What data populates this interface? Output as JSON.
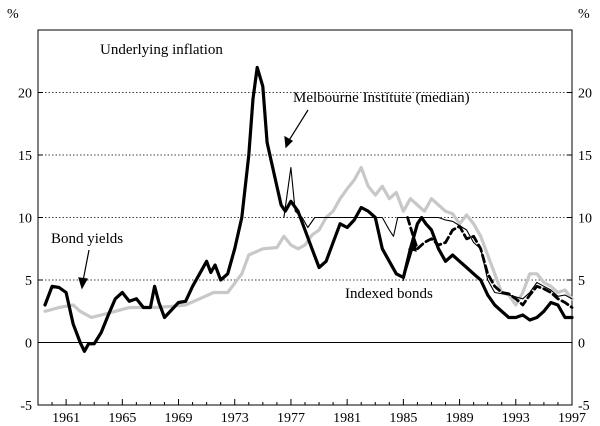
{
  "chart_data": {
    "type": "line",
    "y_unit_left": "%",
    "y_unit_right": "%",
    "ylim": [
      -5,
      25
    ],
    "y_ticks": [
      -5,
      0,
      5,
      10,
      15,
      20
    ],
    "xlim": [
      1959,
      1997
    ],
    "x_ticks": [
      1961,
      1965,
      1969,
      1973,
      1977,
      1981,
      1985,
      1989,
      1993,
      1997
    ],
    "gridlines_y": [
      5,
      10,
      15,
      20
    ],
    "zero_line": true,
    "series": [
      {
        "name": "Underlying inflation",
        "color": "#000000",
        "style": "thick",
        "points": [
          [
            1959.5,
            3.0
          ],
          [
            1960.0,
            4.5
          ],
          [
            1960.5,
            4.4
          ],
          [
            1961.0,
            4.0
          ],
          [
            1961.5,
            1.5
          ],
          [
            1962.0,
            0.0
          ],
          [
            1962.3,
            -0.7
          ],
          [
            1962.6,
            -0.1
          ],
          [
            1963.0,
            -0.1
          ],
          [
            1963.5,
            0.8
          ],
          [
            1964.0,
            2.2
          ],
          [
            1964.5,
            3.5
          ],
          [
            1965.0,
            4.0
          ],
          [
            1965.5,
            3.3
          ],
          [
            1966.0,
            3.5
          ],
          [
            1966.5,
            2.8
          ],
          [
            1967.0,
            2.8
          ],
          [
            1967.3,
            4.5
          ],
          [
            1967.6,
            3.2
          ],
          [
            1968.0,
            2.0
          ],
          [
            1968.5,
            2.6
          ],
          [
            1969.0,
            3.2
          ],
          [
            1969.5,
            3.3
          ],
          [
            1970.0,
            4.5
          ],
          [
            1970.5,
            5.5
          ],
          [
            1971.0,
            6.5
          ],
          [
            1971.3,
            5.6
          ],
          [
            1971.6,
            6.2
          ],
          [
            1972.0,
            5.0
          ],
          [
            1972.5,
            5.5
          ],
          [
            1973.0,
            7.5
          ],
          [
            1973.5,
            10.0
          ],
          [
            1974.0,
            15.0
          ],
          [
            1974.3,
            19.5
          ],
          [
            1974.6,
            22.0
          ],
          [
            1975.0,
            20.5
          ],
          [
            1975.3,
            16.0
          ],
          [
            1975.6,
            14.5
          ],
          [
            1976.0,
            12.5
          ],
          [
            1976.3,
            11.0
          ],
          [
            1976.6,
            10.5
          ],
          [
            1977.0,
            11.3
          ],
          [
            1977.5,
            10.5
          ],
          [
            1978.0,
            9.0
          ],
          [
            1978.5,
            7.5
          ],
          [
            1979.0,
            6.0
          ],
          [
            1979.5,
            6.5
          ],
          [
            1980.0,
            8.0
          ],
          [
            1980.5,
            9.5
          ],
          [
            1981.0,
            9.2
          ],
          [
            1981.5,
            9.8
          ],
          [
            1982.0,
            10.8
          ],
          [
            1982.5,
            10.5
          ],
          [
            1983.0,
            10.0
          ],
          [
            1983.5,
            7.5
          ],
          [
            1984.0,
            6.5
          ],
          [
            1984.5,
            5.5
          ],
          [
            1985.0,
            5.2
          ],
          [
            1985.5,
            7.5
          ],
          [
            1986.0,
            9.5
          ],
          [
            1986.3,
            10.0
          ],
          [
            1986.6,
            9.5
          ],
          [
            1987.0,
            9.0
          ],
          [
            1987.5,
            7.5
          ],
          [
            1988.0,
            6.5
          ],
          [
            1988.5,
            7.0
          ],
          [
            1989.0,
            6.5
          ],
          [
            1989.5,
            6.0
          ],
          [
            1990.0,
            5.5
          ],
          [
            1990.5,
            5.0
          ],
          [
            1991.0,
            3.8
          ],
          [
            1991.5,
            3.0
          ],
          [
            1992.0,
            2.5
          ],
          [
            1992.5,
            2.0
          ],
          [
            1993.0,
            2.0
          ],
          [
            1993.5,
            2.2
          ],
          [
            1994.0,
            1.8
          ],
          [
            1994.5,
            2.0
          ],
          [
            1995.0,
            2.5
          ],
          [
            1995.5,
            3.2
          ],
          [
            1996.0,
            3.0
          ],
          [
            1996.5,
            2.0
          ],
          [
            1997.0,
            2.0
          ]
        ]
      },
      {
        "name": "Bond yields",
        "color": "#c8c8c8",
        "style": "thick",
        "points": [
          [
            1959.5,
            2.5
          ],
          [
            1960.5,
            2.8
          ],
          [
            1961.5,
            3.0
          ],
          [
            1962.0,
            2.5
          ],
          [
            1962.8,
            2.0
          ],
          [
            1963.5,
            2.2
          ],
          [
            1964.5,
            2.5
          ],
          [
            1965.5,
            2.8
          ],
          [
            1966.5,
            2.8
          ],
          [
            1967.5,
            2.8
          ],
          [
            1968.5,
            2.9
          ],
          [
            1969.5,
            3.0
          ],
          [
            1970.5,
            3.5
          ],
          [
            1971.5,
            4.0
          ],
          [
            1972.5,
            4.0
          ],
          [
            1973.5,
            5.5
          ],
          [
            1974.0,
            7.0
          ],
          [
            1975.0,
            7.5
          ],
          [
            1976.0,
            7.6
          ],
          [
            1976.5,
            8.5
          ],
          [
            1977.0,
            7.8
          ],
          [
            1977.5,
            7.5
          ],
          [
            1978.0,
            7.8
          ],
          [
            1978.5,
            8.6
          ],
          [
            1979.0,
            9.0
          ],
          [
            1979.5,
            10.0
          ],
          [
            1980.0,
            10.5
          ],
          [
            1980.5,
            11.5
          ],
          [
            1981.0,
            12.3
          ],
          [
            1981.5,
            13.0
          ],
          [
            1982.0,
            14.0
          ],
          [
            1982.5,
            12.5
          ],
          [
            1983.0,
            11.8
          ],
          [
            1983.5,
            12.5
          ],
          [
            1984.0,
            11.5
          ],
          [
            1984.5,
            12.0
          ],
          [
            1985.0,
            10.5
          ],
          [
            1985.5,
            11.5
          ],
          [
            1986.0,
            11.0
          ],
          [
            1986.5,
            10.5
          ],
          [
            1987.0,
            11.5
          ],
          [
            1987.5,
            11.0
          ],
          [
            1988.0,
            10.5
          ],
          [
            1988.5,
            10.3
          ],
          [
            1989.0,
            9.5
          ],
          [
            1989.5,
            10.2
          ],
          [
            1990.0,
            9.5
          ],
          [
            1990.5,
            8.5
          ],
          [
            1991.0,
            7.0
          ],
          [
            1991.5,
            5.5
          ],
          [
            1992.0,
            4.0
          ],
          [
            1992.5,
            3.8
          ],
          [
            1993.0,
            3.0
          ],
          [
            1993.5,
            4.0
          ],
          [
            1994.0,
            5.5
          ],
          [
            1994.5,
            5.5
          ],
          [
            1995.0,
            4.8
          ],
          [
            1995.5,
            4.5
          ],
          [
            1996.0,
            4.0
          ],
          [
            1996.5,
            4.2
          ],
          [
            1997.0,
            3.5
          ]
        ]
      },
      {
        "name": "Melbourne Institute (median)",
        "color": "#000000",
        "style": "thin",
        "points": [
          [
            1976.5,
            10.0
          ],
          [
            1977.0,
            14.0
          ],
          [
            1977.3,
            10.5
          ],
          [
            1977.8,
            10.0
          ],
          [
            1978.2,
            9.2
          ],
          [
            1978.7,
            10.0
          ],
          [
            1979.5,
            10.0
          ],
          [
            1980.5,
            10.0
          ],
          [
            1981.5,
            10.0
          ],
          [
            1982.5,
            10.0
          ],
          [
            1983.5,
            10.0
          ],
          [
            1984.0,
            9.0
          ],
          [
            1984.3,
            8.5
          ],
          [
            1984.6,
            10.0
          ],
          [
            1985.5,
            10.0
          ],
          [
            1986.5,
            10.0
          ],
          [
            1987.5,
            10.0
          ],
          [
            1988.0,
            9.8
          ],
          [
            1988.5,
            9.7
          ],
          [
            1989.5,
            9.0
          ],
          [
            1990.0,
            8.0
          ],
          [
            1990.5,
            7.5
          ],
          [
            1991.0,
            5.0
          ],
          [
            1991.5,
            4.0
          ],
          [
            1992.5,
            3.8
          ],
          [
            1993.5,
            3.5
          ],
          [
            1994.0,
            4.0
          ],
          [
            1994.5,
            4.8
          ],
          [
            1995.0,
            4.5
          ],
          [
            1995.5,
            4.2
          ],
          [
            1996.0,
            3.7
          ],
          [
            1996.5,
            3.8
          ],
          [
            1997.0,
            3.5
          ]
        ]
      },
      {
        "name": "Indexed bonds",
        "color": "#000000",
        "style": "dashed",
        "points": [
          [
            1985.3,
            10.0
          ],
          [
            1985.7,
            8.5
          ],
          [
            1986.0,
            7.5
          ],
          [
            1986.5,
            8.0
          ],
          [
            1987.0,
            8.3
          ],
          [
            1987.5,
            7.8
          ],
          [
            1988.0,
            8.0
          ],
          [
            1988.5,
            9.0
          ],
          [
            1989.0,
            9.3
          ],
          [
            1989.5,
            8.3
          ],
          [
            1990.0,
            8.5
          ],
          [
            1990.5,
            7.5
          ],
          [
            1991.0,
            5.5
          ],
          [
            1991.5,
            4.5
          ],
          [
            1992.0,
            4.0
          ],
          [
            1992.5,
            3.9
          ],
          [
            1993.0,
            3.5
          ],
          [
            1993.5,
            3.0
          ],
          [
            1994.0,
            3.8
          ],
          [
            1994.5,
            4.5
          ],
          [
            1995.0,
            4.3
          ],
          [
            1995.5,
            4.0
          ],
          [
            1996.0,
            3.5
          ],
          [
            1996.5,
            3.2
          ],
          [
            1997.0,
            2.8
          ]
        ]
      }
    ]
  },
  "annotations": {
    "underlying_inflation": "Underlying inflation",
    "melbourne_institute": "Melbourne Institute (median)",
    "bond_yields": "Bond yields",
    "indexed_bonds": "Indexed bonds"
  }
}
